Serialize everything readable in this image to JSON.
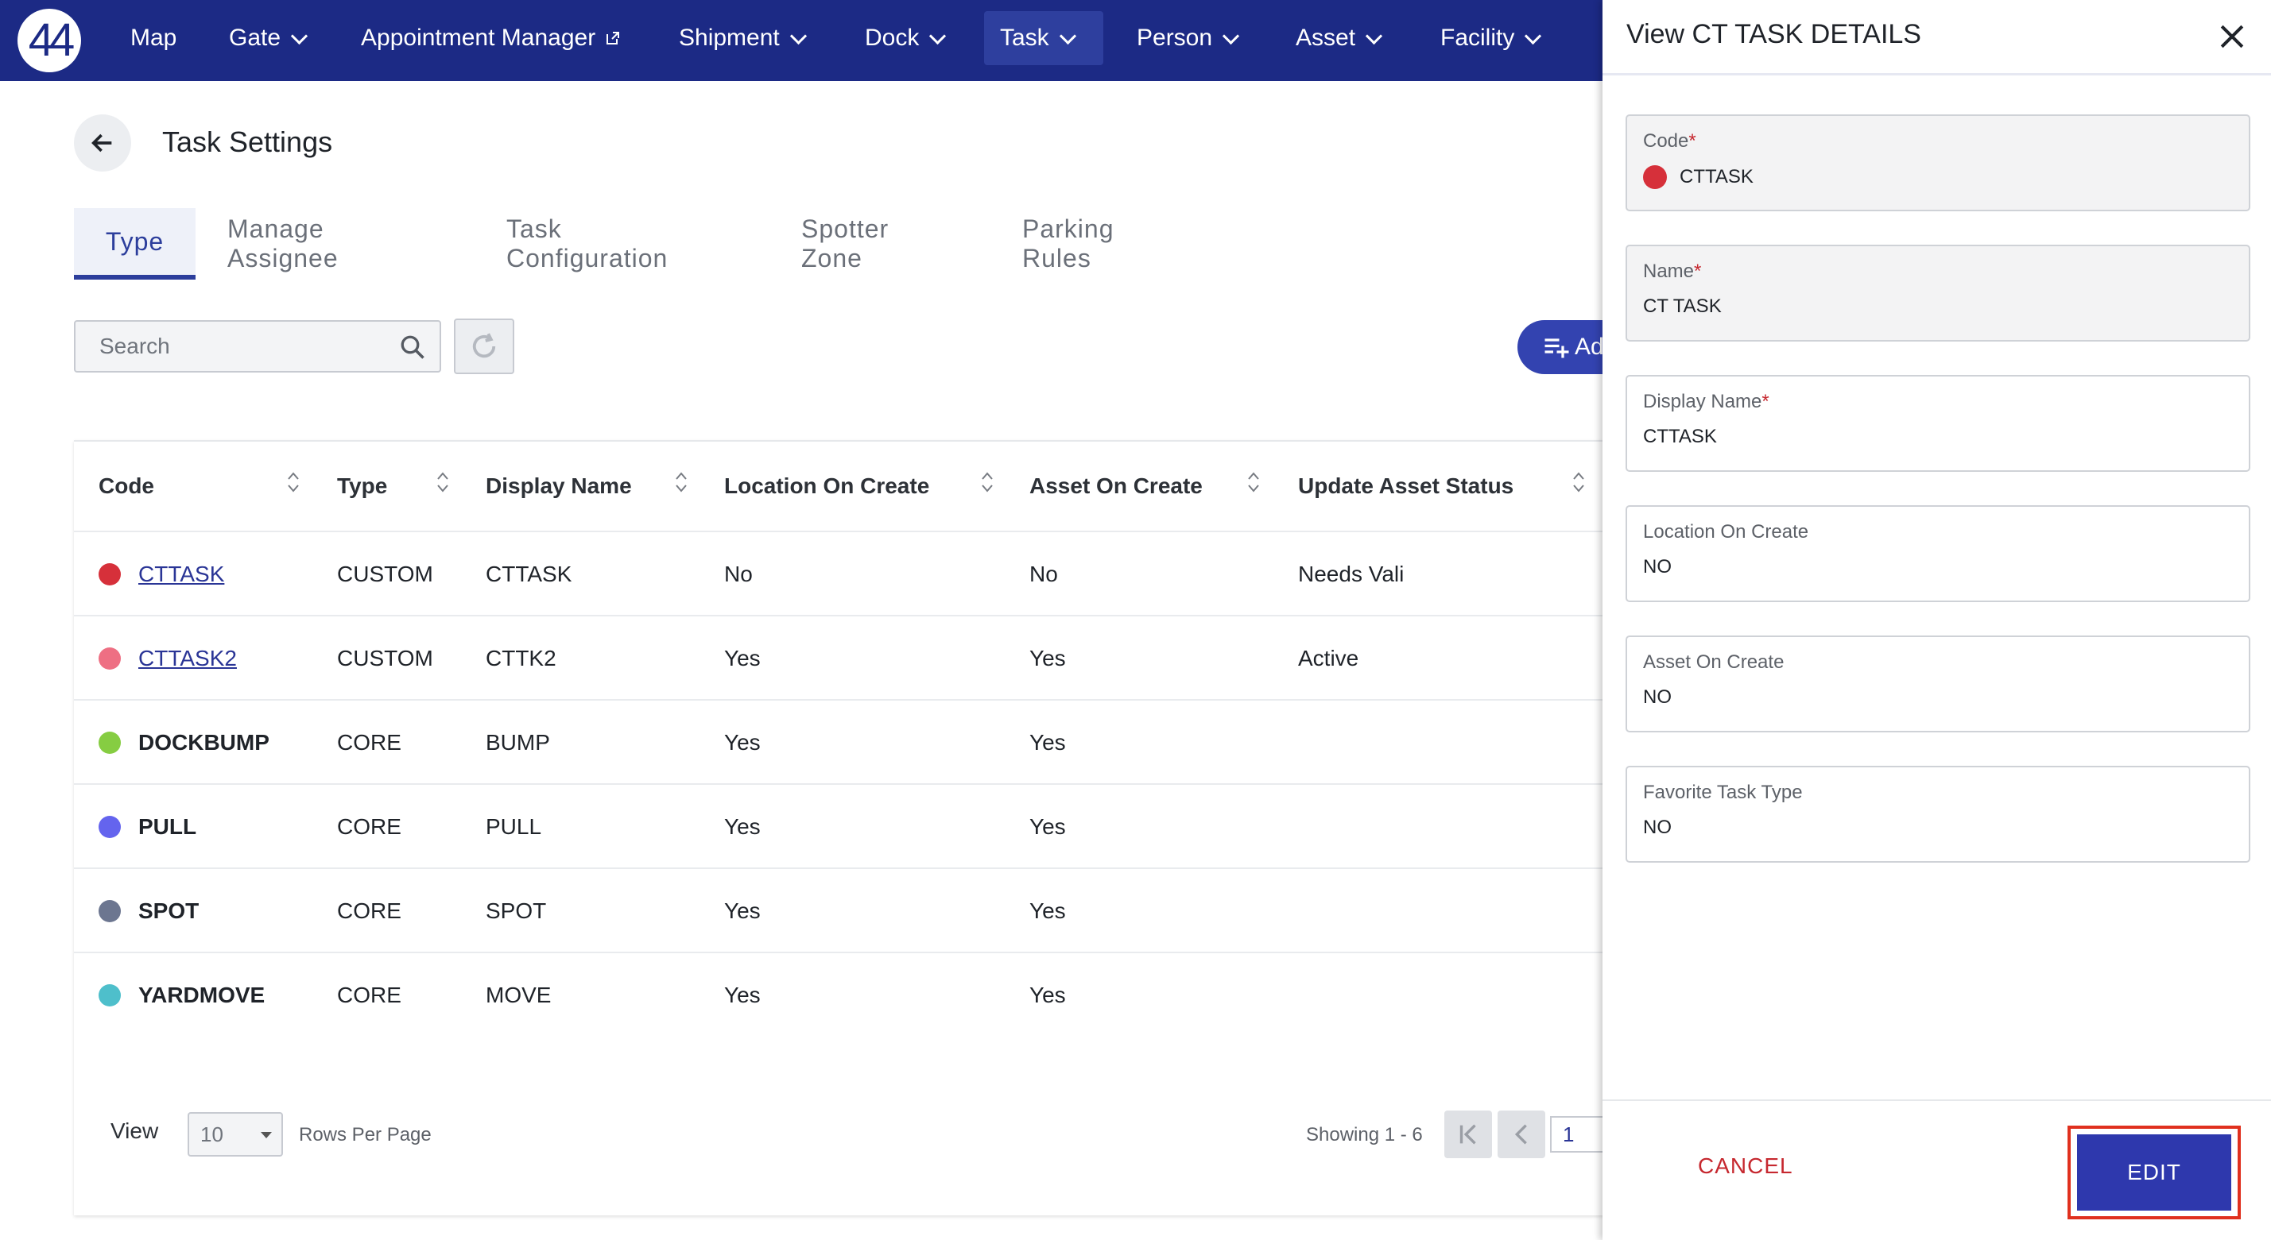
{
  "logo_text": "44",
  "nav": {
    "items": [
      {
        "label": "Map",
        "has_chevron": false
      },
      {
        "label": "Gate",
        "has_chevron": true
      },
      {
        "label": "Appointment Manager",
        "external": true
      },
      {
        "label": "Shipment",
        "has_chevron": true
      },
      {
        "label": "Dock",
        "has_chevron": true
      },
      {
        "label": "Task",
        "has_chevron": true,
        "active": true
      },
      {
        "label": "Person",
        "has_chevron": true
      },
      {
        "label": "Asset",
        "has_chevron": true
      },
      {
        "label": "Facility",
        "has_chevron": true
      }
    ]
  },
  "page": {
    "title": "Task Settings",
    "tabs": [
      "Type",
      "Manage Assignee",
      "Task Configuration",
      "Spotter Zone",
      "Parking Rules"
    ],
    "active_tab": "Type",
    "search_placeholder": "Search",
    "add_button_label": "Add"
  },
  "table": {
    "columns": [
      "Code",
      "Type",
      "Display Name",
      "Location On Create",
      "Asset On Create",
      "Update Asset Status"
    ],
    "rows": [
      {
        "dot_color": "#d6303a",
        "code": "CTTASK",
        "link": true,
        "type": "CUSTOM",
        "display_name": "CTTASK",
        "location_on_create": "No",
        "asset_on_create": "No",
        "update_asset_status": "Needs Vali"
      },
      {
        "dot_color": "#ee6f83",
        "code": "CTTASK2",
        "link": true,
        "type": "CUSTOM",
        "display_name": "CTTK2",
        "location_on_create": "Yes",
        "asset_on_create": "Yes",
        "update_asset_status": "Active"
      },
      {
        "dot_color": "#86cd42",
        "code": "DOCKBUMP",
        "link": false,
        "type": "CORE",
        "display_name": "BUMP",
        "location_on_create": "Yes",
        "asset_on_create": "Yes",
        "update_asset_status": ""
      },
      {
        "dot_color": "#6464ee",
        "code": "PULL",
        "link": false,
        "type": "CORE",
        "display_name": "PULL",
        "location_on_create": "Yes",
        "asset_on_create": "Yes",
        "update_asset_status": ""
      },
      {
        "dot_color": "#6c7690",
        "code": "SPOT",
        "link": false,
        "type": "CORE",
        "display_name": "SPOT",
        "location_on_create": "Yes",
        "asset_on_create": "Yes",
        "update_asset_status": ""
      },
      {
        "dot_color": "#4ebfcb",
        "code": "YARDMOVE",
        "link": false,
        "type": "CORE",
        "display_name": "MOVE",
        "location_on_create": "Yes",
        "asset_on_create": "Yes",
        "update_asset_status": ""
      }
    ]
  },
  "footer": {
    "view_label": "View",
    "rows_per_page_value": "10",
    "rows_per_page_label": "Rows Per Page",
    "showing_text": "Showing 1 - 6",
    "page_number": "1"
  },
  "panel": {
    "title": "View CT TASK DETAILS",
    "fields": [
      {
        "label": "Code",
        "required": true,
        "value": "CTTASK",
        "readonly": true,
        "dot_color": "#d6303a"
      },
      {
        "label": "Name",
        "required": true,
        "value": "CT TASK",
        "readonly": true
      },
      {
        "label": "Display Name",
        "required": true,
        "value": "CTTASK",
        "readonly": false
      },
      {
        "label": "Location On Create",
        "required": false,
        "value": "NO",
        "readonly": false
      },
      {
        "label": "Asset On Create",
        "required": false,
        "value": "NO",
        "readonly": false
      },
      {
        "label": "Favorite Task Type",
        "required": false,
        "value": "NO",
        "readonly": false
      }
    ],
    "cancel_label": "CANCEL",
    "edit_label": "EDIT"
  },
  "colors": {
    "nav_bg": "#1c2a85",
    "primary": "#2e38ad",
    "danger": "#c6282f",
    "highlight": "#e0301e"
  }
}
